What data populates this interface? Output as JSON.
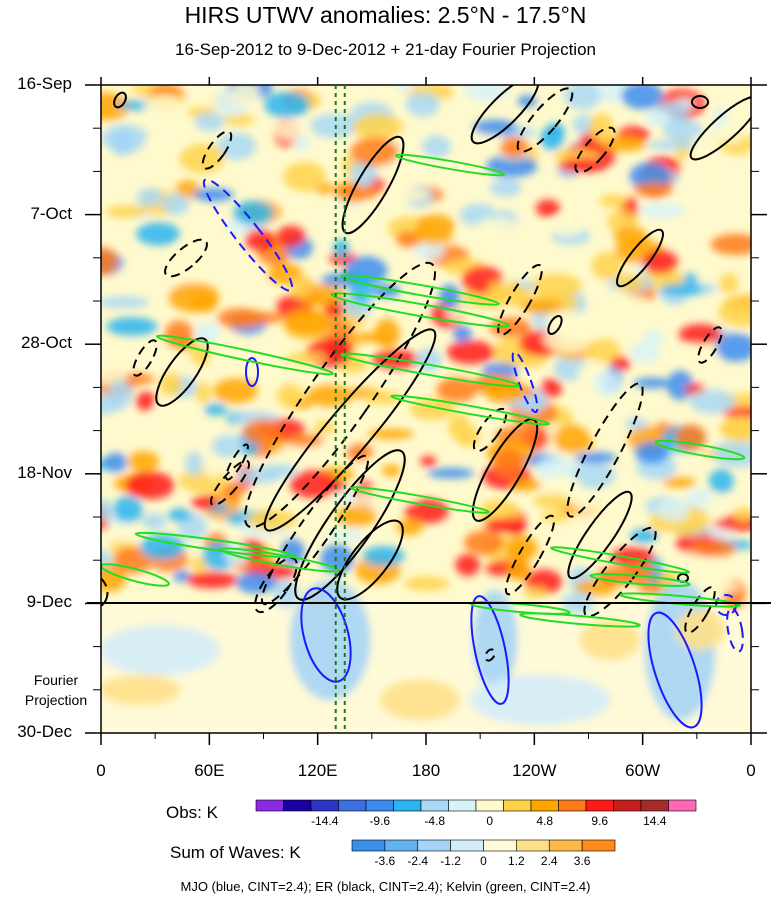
{
  "chart_data": {
    "type": "heatmap",
    "title": "HIRS UTWV anomalies: 2.5°N - 17.5°N",
    "subtitle": "16-Sep-2012 to 9-Dec-2012 + 21-day Fourier Projection",
    "y_tick_labels": [
      "16-Sep",
      "7-Oct",
      "28-Oct",
      "18-Nov",
      "9-Dec",
      "30-Dec"
    ],
    "x_tick_labels": [
      "0",
      "60E",
      "120E",
      "180",
      "120W",
      "60W",
      "0"
    ],
    "x_range_deg_east": [
      0,
      360
    ],
    "projection_label": "Fourier\nProjection",
    "projection_label_lines": [
      "Fourier",
      "Projection"
    ],
    "obs_colorbar": {
      "label": "Obs: K",
      "levels": [
        "-14.4",
        "-9.6",
        "-4.8",
        "0",
        "4.8",
        "9.6",
        "14.4"
      ],
      "colors": [
        "#8a2be2",
        "#1a00a0",
        "#2c33c6",
        "#3c6fe0",
        "#3c8cf0",
        "#2ab4f0",
        "#a8d8f4",
        "#d8f2f8",
        "#fffacd",
        "#ffd24a",
        "#ffa500",
        "#ff7a1a",
        "#ff1a1a",
        "#c41e1e",
        "#a52a2a",
        "#ff69b4"
      ]
    },
    "waves_colorbar": {
      "label": "Sum of Waves: K",
      "levels": [
        "-3.6",
        "-2.4",
        "-1.2",
        "0",
        "1.2",
        "2.4",
        "3.6"
      ],
      "colors": [
        "#3a8fe6",
        "#62b2f0",
        "#a6d4f6",
        "#d4ecf8",
        "#fffad8",
        "#ffe08a",
        "#ffb84a",
        "#ff8c1a"
      ]
    },
    "legend_text": "MJO (blue, CINT=2.4); ER (black, CINT=2.4); Kelvin (green, CINT=2.4)",
    "series": [
      {
        "name": "MJO",
        "color": "#1a1aff"
      },
      {
        "name": "ER",
        "color": "#000000"
      },
      {
        "name": "Kelvin",
        "color": "#22dd22"
      }
    ],
    "reference_longitudes_deg_east": [
      130,
      135
    ]
  }
}
